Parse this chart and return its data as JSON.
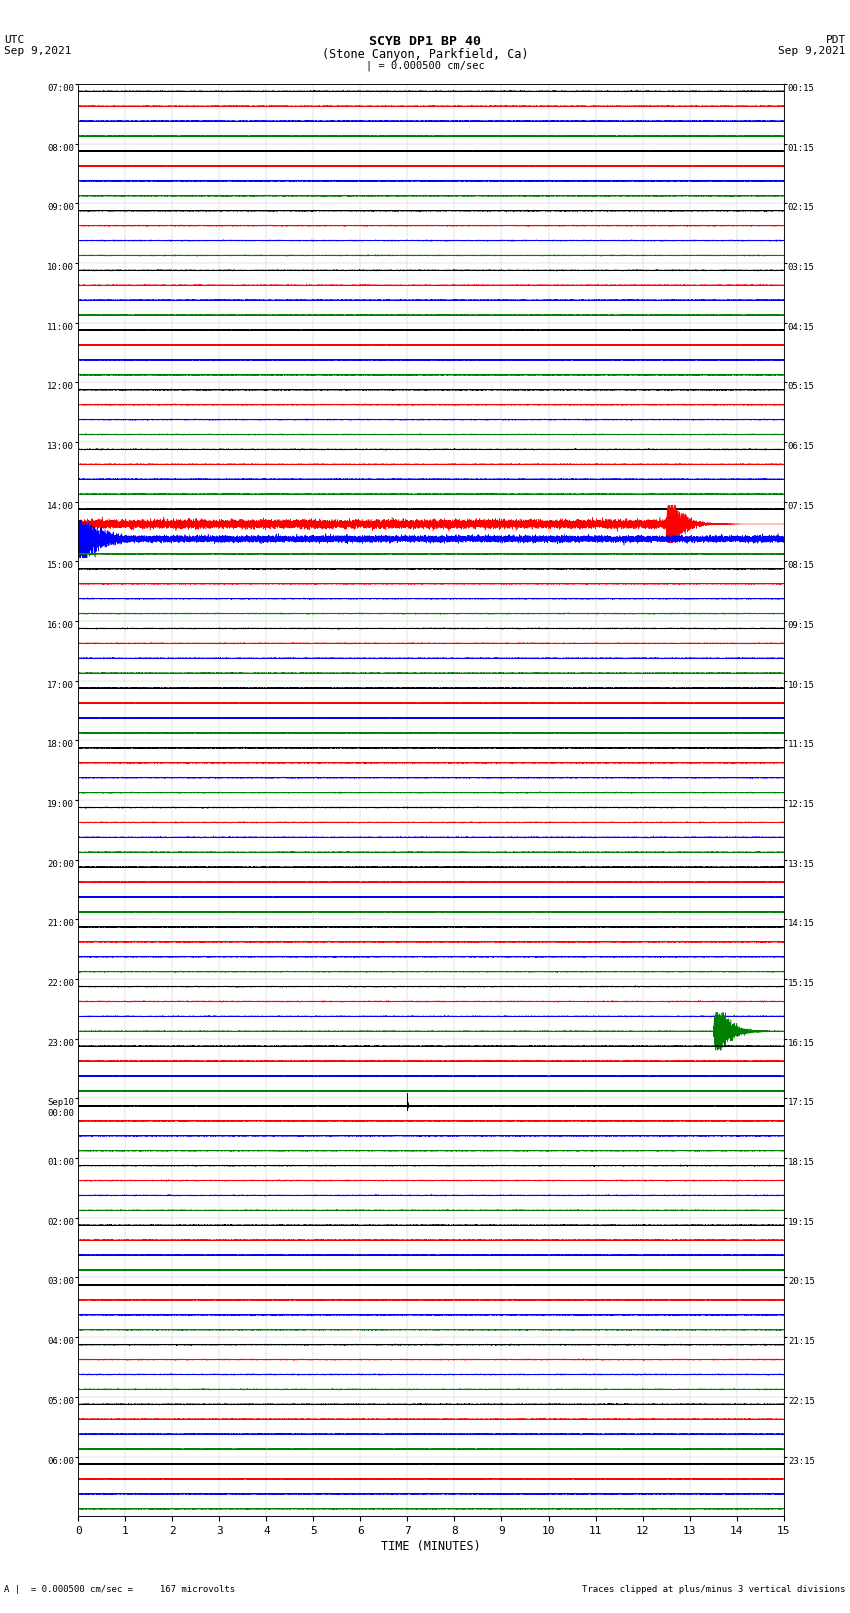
{
  "title_line1": "SCYB DP1 BP 40",
  "title_line2": "(Stone Canyon, Parkfield, Ca)",
  "scale_bar_text": "| = 0.000500 cm/sec",
  "left_label_line1": "UTC",
  "left_label_line2": "Sep 9,2021",
  "right_label_line1": "PDT",
  "right_label_line2": "Sep 9,2021",
  "xlabel": "TIME (MINUTES)",
  "footer_left": "A |  = 0.000500 cm/sec =     167 microvolts",
  "footer_right": "Traces clipped at plus/minus 3 vertical divisions",
  "utc_times": [
    "07:00",
    "08:00",
    "09:00",
    "10:00",
    "11:00",
    "12:00",
    "13:00",
    "14:00",
    "15:00",
    "16:00",
    "17:00",
    "18:00",
    "19:00",
    "20:00",
    "21:00",
    "22:00",
    "23:00",
    "Sep10\n00:00",
    "01:00",
    "02:00",
    "03:00",
    "04:00",
    "05:00",
    "06:00"
  ],
  "pdt_times": [
    "00:15",
    "01:15",
    "02:15",
    "03:15",
    "04:15",
    "05:15",
    "06:15",
    "07:15",
    "08:15",
    "09:15",
    "10:15",
    "11:15",
    "12:15",
    "13:15",
    "14:15",
    "15:15",
    "16:15",
    "17:15",
    "18:15",
    "19:15",
    "20:15",
    "21:15",
    "22:15",
    "23:15"
  ],
  "n_rows": 24,
  "traces_per_row": 4,
  "colors": [
    "black",
    "red",
    "blue",
    "green"
  ],
  "minutes_per_row": 15,
  "sample_rate": 40,
  "noise_amplitude": 0.06,
  "background_color": "white",
  "line_width": 0.35,
  "event_row_blue": 7,
  "event_row_red": 7,
  "event_row_green": 15,
  "event_row_black_spike": 17
}
